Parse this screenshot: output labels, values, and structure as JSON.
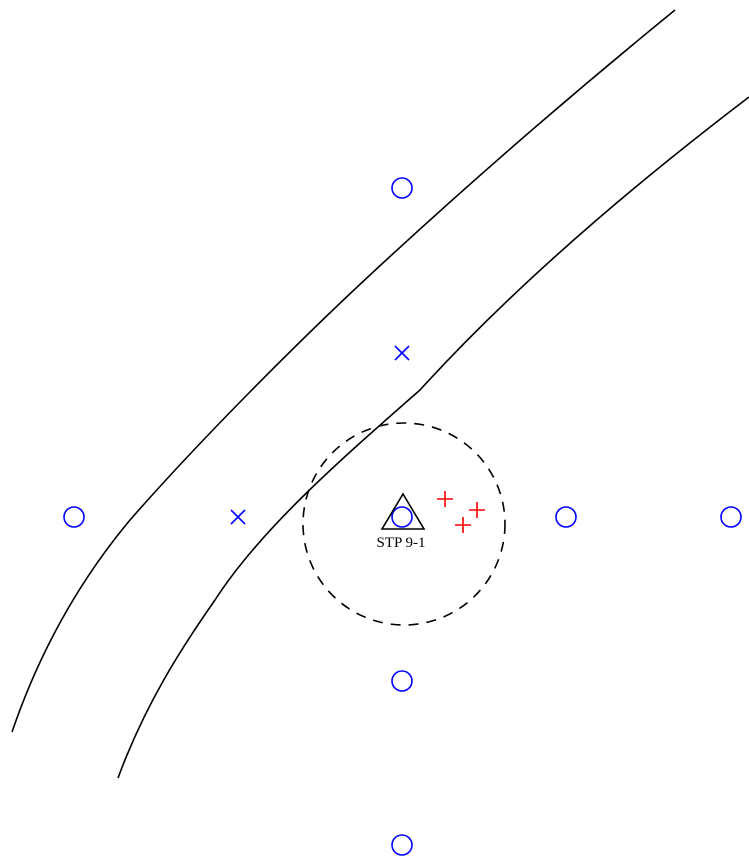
{
  "colors": {
    "background": "#ffffff",
    "boundary_line": "#000000",
    "grid_marker": "#0000ff",
    "find_marker": "#ff0000",
    "datum_marker": "#000000"
  },
  "datum": {
    "label": "STP 9-1",
    "icon": "triangle-icon"
  },
  "legend_icons": {
    "open_circle": "circle-icon",
    "cross": "x-icon",
    "plus": "plus-icon"
  }
}
